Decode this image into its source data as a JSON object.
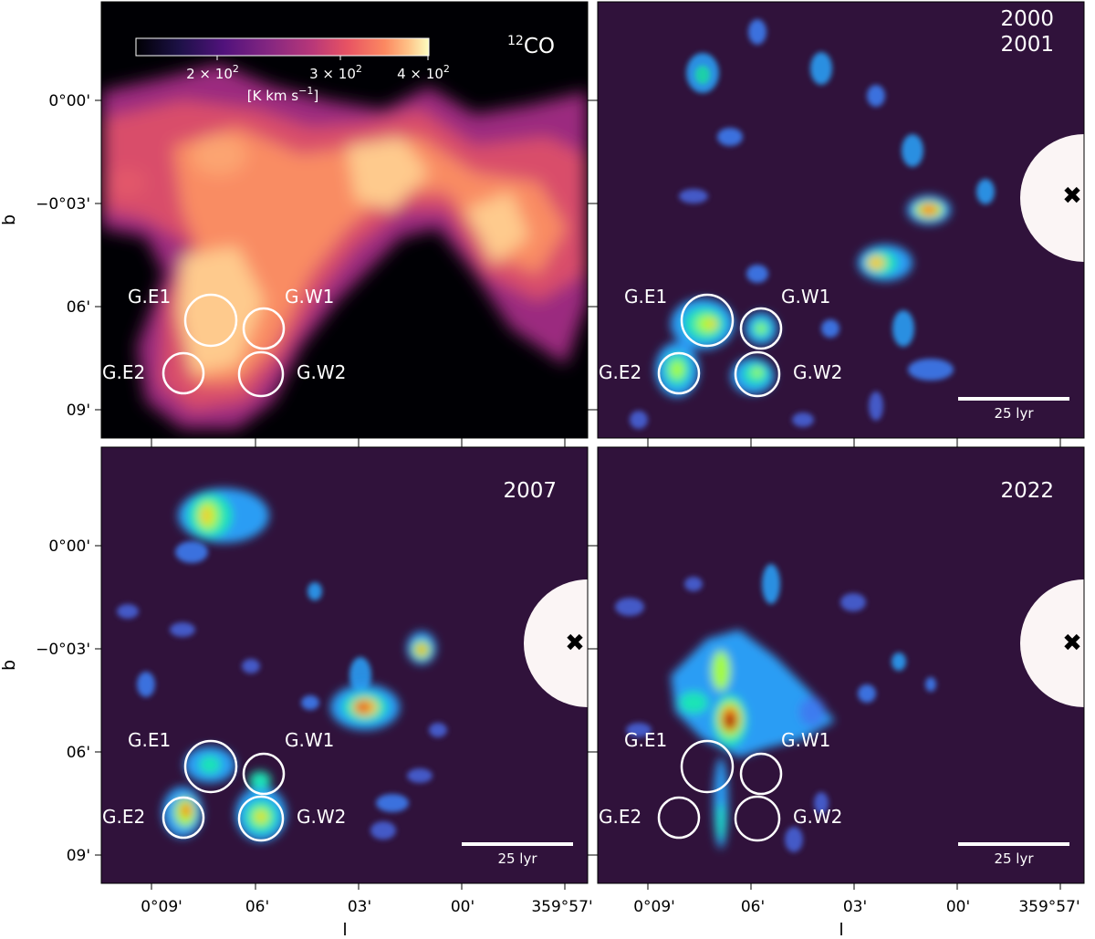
{
  "figure": {
    "panels": [
      {
        "id": "co",
        "label_lines": [
          "",
          "CO"
        ],
        "superscript": "12",
        "kind": "co"
      },
      {
        "id": "p2000",
        "label_lines": [
          "2000",
          "2001"
        ],
        "kind": "xray"
      },
      {
        "id": "p2007",
        "label_lines": [
          "2007"
        ],
        "kind": "xray"
      },
      {
        "id": "p2022",
        "label_lines": [
          "2022"
        ],
        "kind": "xray"
      }
    ],
    "regions": [
      "G.E1",
      "G.W1",
      "G.E2",
      "G.W2"
    ],
    "y_ticks": [
      "0°00'",
      "−0°03'",
      "06'",
      "09'"
    ],
    "x_ticks": [
      "0°09'",
      "06'",
      "03'",
      "00'",
      "359°57'"
    ],
    "xlabel": "l",
    "ylabel": "b",
    "scalebar_label": "25 lyr",
    "colorbar": {
      "ticks": [
        "2 × 10",
        "3 × 10",
        "4 × 10"
      ],
      "tick_exponent": "2",
      "unit_prefix": "[K km s",
      "unit_exponent": "−1",
      "unit_suffix": "]",
      "colormap": "magma"
    },
    "marker": "cross-icon",
    "colors": {
      "co_background": "#000004",
      "xray_background": "#30123b",
      "region_circle": "#ffffff",
      "mask": "#fbf5f5"
    }
  }
}
